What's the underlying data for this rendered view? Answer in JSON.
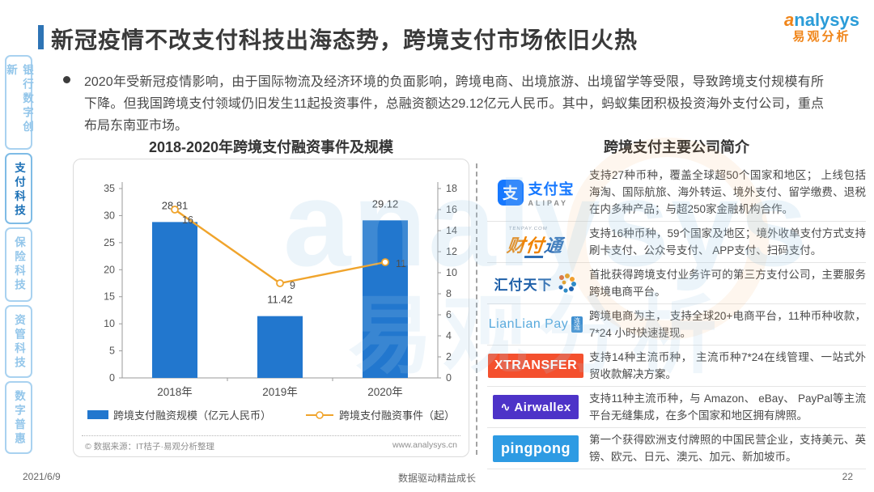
{
  "slide": {
    "title": "新冠疫情不改支付科技出海态势，跨境支付市场依旧火热",
    "bullet_text": "2020年受新冠疫情影响，由于国际物流及经济环境的负面影响，跨境电商、出境旅游、出境留学等受限，导致跨境支付规模有所下降。但我国跨境支付领域仍旧发生11起投资事件，总融资额达29.12亿元人民币。其中，蚂蚁集团积极投资海外支付公司，重点布局东南亚市场。",
    "brand": {
      "logo_initial": "a",
      "logo_rest": "nalysys",
      "logo_cn": "易观分析"
    },
    "watermark": {
      "text_en": "analysys",
      "text_cn": "易观分析"
    },
    "footer": {
      "date": "2021/6/9",
      "slogan": "数据驱动精益成长",
      "page_number": "22"
    }
  },
  "sidebar": {
    "items": [
      {
        "label": "银行数字创新",
        "active": false
      },
      {
        "label": "支付科技",
        "active": true
      },
      {
        "label": "保险科技",
        "active": false
      },
      {
        "label": "资管科技",
        "active": false
      },
      {
        "label": "数字普惠",
        "active": false
      }
    ]
  },
  "chart_data": {
    "type": "bar",
    "title": "2018-2020年跨境支付融资事件及规模",
    "categories": [
      "2018年",
      "2019年",
      "2020年"
    ],
    "series": [
      {
        "name": "跨境支付融资规模（亿元人民币）",
        "kind": "bar",
        "axis": "left",
        "values": [
          28.81,
          11.42,
          29.12
        ],
        "color": "#2277CE"
      },
      {
        "name": "跨境支付融资事件（起）",
        "kind": "line",
        "axis": "right",
        "values": [
          16,
          9,
          11
        ],
        "color": "#F0A42C"
      }
    ],
    "left_axis": {
      "min": 0,
      "max": 35,
      "step": 5
    },
    "right_axis": {
      "min": 0,
      "max": 18,
      "step": 2
    },
    "grid": false,
    "legend_position": "bottom",
    "source_left": "© 数据来源：IT桔子·易观分析整理",
    "source_right": "www.analysys.cn"
  },
  "companies": {
    "title": "跨境支付主要公司简介",
    "rows": [
      {
        "name": "alipay",
        "logo": {
          "type": "alipay",
          "glyph": "支",
          "cn": "支付宝",
          "en": "ALIPAY"
        },
        "desc": "支持27种币种，覆盖全球超50个国家和地区； 上线包括海淘、国际航旅、海外转运、境外支付、留学缴费、退税在内多种产品；与超250家金融机构合作。"
      },
      {
        "name": "tenpay",
        "logo": {
          "type": "tenpay",
          "top": "TENPAY.COM",
          "chars": [
            "财",
            "付",
            "通"
          ]
        },
        "desc": "支持16种币种，59个国家及地区；境外收单支付方式支持刷卡支付、公众号支付、 APP支付、扫码支付。"
      },
      {
        "name": "huifu",
        "logo": {
          "type": "huifu",
          "text": "汇付天下"
        },
        "desc": "首批获得跨境支付业务许可的第三方支付公司，主要服务跨境电商平台。"
      },
      {
        "name": "lianlian",
        "logo": {
          "type": "lianlian",
          "text": "LianLian Pay",
          "badge": "连连"
        },
        "desc": "跨境电商为主， 支持全球20+电商平台，11种币种收款，7*24 小时快速提现。"
      },
      {
        "name": "xtransfer",
        "logo": {
          "type": "box",
          "text": "XTRANSFER",
          "bg": "#F4502E",
          "fs": 16
        },
        "desc": "支持14种主流币种， 主流币种7*24在线管理、一站式外贸收款解决方案。"
      },
      {
        "name": "airwallex",
        "logo": {
          "type": "box",
          "text": "Airwallex",
          "mark": "∿",
          "bg": "#4D33C8",
          "fs": 15
        },
        "desc": "支持11种主流币种，与 Amazon、 eBay、 PayPal等主流平台无缝集成，在多个国家和地区拥有牌照。"
      },
      {
        "name": "pingpong",
        "logo": {
          "type": "box",
          "text": "pingpong",
          "bg": "#2E9BE3",
          "fs": 18
        },
        "desc": "第一个获得欧洲支付牌照的中国民营企业，支持美元、英镑、欧元、日元、澳元、加元、新加坡币。"
      }
    ]
  }
}
